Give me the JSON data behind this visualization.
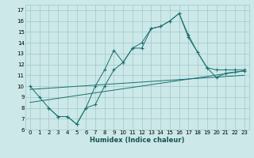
{
  "xlabel": "Humidex (Indice chaleur)",
  "bg_color": "#cce8e8",
  "grid_color": "#a0c8c8",
  "line_color": "#1a7070",
  "xlim": [
    -0.5,
    23.5
  ],
  "ylim": [
    6,
    17.5
  ],
  "yticks": [
    6,
    7,
    8,
    9,
    10,
    11,
    12,
    13,
    14,
    15,
    16,
    17
  ],
  "xticks": [
    0,
    1,
    2,
    3,
    4,
    5,
    6,
    7,
    8,
    9,
    10,
    11,
    12,
    13,
    14,
    15,
    16,
    17,
    18,
    19,
    20,
    21,
    22,
    23
  ],
  "line1": {
    "x": [
      0,
      1,
      2,
      3,
      4,
      5,
      6,
      7,
      8,
      9,
      10,
      11,
      12,
      13,
      14,
      15,
      16,
      17,
      18,
      19,
      20,
      21,
      22,
      23
    ],
    "y": [
      10.0,
      9.0,
      8.0,
      7.2,
      7.2,
      6.5,
      8.0,
      10.0,
      11.5,
      13.3,
      12.2,
      13.5,
      13.5,
      15.3,
      15.5,
      16.0,
      16.7,
      14.7,
      13.1,
      11.7,
      10.8,
      11.2,
      11.3,
      11.4
    ]
  },
  "line2": {
    "x": [
      2,
      3,
      4,
      5,
      6,
      7,
      8,
      9,
      10,
      11,
      12,
      13,
      14,
      15,
      16,
      17,
      19,
      20,
      21,
      22,
      23
    ],
    "y": [
      8.0,
      7.2,
      7.2,
      6.5,
      8.0,
      8.3,
      10.0,
      11.5,
      12.2,
      13.5,
      14.0,
      15.3,
      15.5,
      16.0,
      16.7,
      14.5,
      11.7,
      11.5,
      11.5,
      11.5,
      11.5
    ]
  },
  "trend1": {
    "x": [
      0,
      23
    ],
    "y": [
      8.5,
      11.4
    ]
  },
  "trend2": {
    "x": [
      0,
      23
    ],
    "y": [
      9.7,
      11.0
    ]
  }
}
